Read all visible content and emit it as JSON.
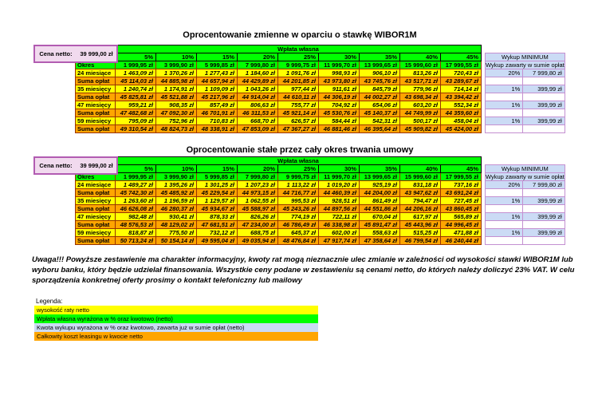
{
  "price": {
    "label": "Cena netto:",
    "value": "39 999,00 zł"
  },
  "tables": [
    {
      "title": "Oprocentowanie zmienne w oparciu o stawkę WIBOR1M",
      "header_group": "Wpłata własna",
      "columns": [
        "5%",
        "10%",
        "15%",
        "20%",
        "25%",
        "30%",
        "35%",
        "40%",
        "45%"
      ],
      "rows": [
        {
          "label": "Okres",
          "type": "okres",
          "values": [
            "1 999,95 zł",
            "3 999,90 zł",
            "5 999,85 zł",
            "7 999,80 zł",
            "9 999,75 zł",
            "11 999,70 zł",
            "13 999,65 zł",
            "15 999,60 zł",
            "17 999,55 zł"
          ]
        },
        {
          "label": "24 miesiące",
          "type": "rata",
          "values": [
            "1 463,09 zł",
            "1 370,26 zł",
            "1 277,43 zł",
            "1 184,60 zł",
            "1 091,76 zł",
            "998,93 zł",
            "906,10 zł",
            "813,26 zł",
            "720,43 zł"
          ]
        },
        {
          "label": "Suma opłat",
          "type": "suma",
          "values": [
            "45 114,03 zł",
            "44 885,98 zł",
            "44 657,94 zł",
            "44 429,89 zł",
            "44 201,85 zł",
            "43 973,80 zł",
            "43 745,76 zł",
            "43 517,71 zł",
            "43 289,67 zł"
          ]
        },
        {
          "label": "35 miesięcy",
          "type": "rata",
          "values": [
            "1 240,74 zł",
            "1 174,91 zł",
            "1 109,09 zł",
            "1 043,26 zł",
            "977,44 zł",
            "911,61 zł",
            "845,79 zł",
            "779,96 zł",
            "714,14 zł"
          ]
        },
        {
          "label": "Suma opłat",
          "type": "suma",
          "values": [
            "45 825,81 zł",
            "45 521,88 zł",
            "45 217,96 zł",
            "44 914,04 zł",
            "44 610,11 zł",
            "44 306,19 zł",
            "44 002,27 zł",
            "43 698,34 zł",
            "43 394,42 zł"
          ]
        },
        {
          "label": "47 miesięcy",
          "type": "rata",
          "values": [
            "959,21 zł",
            "908,35 zł",
            "857,49 zł",
            "806,63 zł",
            "755,77 zł",
            "704,92 zł",
            "654,06 zł",
            "603,20 zł",
            "552,34 zł"
          ]
        },
        {
          "label": "Suma opłat",
          "type": "suma",
          "values": [
            "47 482,68 zł",
            "47 092,30 zł",
            "46 701,91 zł",
            "46 311,53 zł",
            "45 921,14 zł",
            "45 530,76 zł",
            "45 140,37 zł",
            "44 749,99 zł",
            "44 359,60 zł"
          ]
        },
        {
          "label": "59 miesięcy",
          "type": "rata",
          "values": [
            "795,09 zł",
            "752,96 zł",
            "710,83 zł",
            "668,70 zł",
            "626,57 zł",
            "584,44 zł",
            "542,31 zł",
            "500,17 zł",
            "458,04 zł"
          ]
        },
        {
          "label": "Suma opłat",
          "type": "suma",
          "values": [
            "49 310,54 zł",
            "48 824,73 zł",
            "48 338,91 zł",
            "47 853,09 zł",
            "47 367,27 zł",
            "46 881,46 zł",
            "46 395,64 zł",
            "45 909,82 zł",
            "45 424,00 zł"
          ]
        }
      ],
      "wykup": {
        "title": "Wykup MINIMUM",
        "subtitle": "Wykup zawarty w sumie opłat",
        "rows": [
          [
            "20%",
            "7 999,80 zł"
          ],
          [
            "",
            ""
          ],
          [
            "1%",
            "399,99 zł"
          ],
          [
            "",
            ""
          ],
          [
            "1%",
            "399,99 zł"
          ],
          [
            "",
            ""
          ],
          [
            "1%",
            "399,99 zł"
          ],
          [
            "",
            ""
          ]
        ]
      }
    },
    {
      "title": "Oprocentowanie stałe przez cały okres trwania umowy",
      "header_group": "Wpłata własna",
      "columns": [
        "5%",
        "10%",
        "15%",
        "20%",
        "25%",
        "30%",
        "35%",
        "40%",
        "45%"
      ],
      "rows": [
        {
          "label": "Okres",
          "type": "okres",
          "values": [
            "1 999,95 zł",
            "3 999,90 zł",
            "5 999,85 zł",
            "7 999,80 zł",
            "9 999,75 zł",
            "11 999,70 zł",
            "13 999,65 zł",
            "15 999,60 zł",
            "17 999,55 zł"
          ]
        },
        {
          "label": "24 miesiące",
          "type": "rata",
          "values": [
            "1 489,27 zł",
            "1 395,26 zł",
            "1 301,25 zł",
            "1 207,23 zł",
            "1 113,22 zł",
            "1 019,20 zł",
            "925,19 zł",
            "831,18 zł",
            "737,16 zł"
          ]
        },
        {
          "label": "Suma opłat",
          "type": "suma",
          "values": [
            "45 742,30 zł",
            "45 485,92 zł",
            "45 229,54 zł",
            "44 973,15 zł",
            "44 716,77 zł",
            "44 460,39 zł",
            "44 204,00 zł",
            "43 947,62 zł",
            "43 691,24 zł"
          ]
        },
        {
          "label": "35 miesięcy",
          "type": "rata",
          "values": [
            "1 263,60 zł",
            "1 196,59 zł",
            "1 129,57 zł",
            "1 062,55 zł",
            "995,53 zł",
            "928,51 zł",
            "861,49 zł",
            "794,47 zł",
            "727,45 zł"
          ]
        },
        {
          "label": "Suma opłat",
          "type": "suma",
          "values": [
            "46 626,08 zł",
            "46 280,37 zł",
            "45 934,67 zł",
            "45 588,97 zł",
            "45 243,26 zł",
            "44 897,56 zł",
            "44 551,86 zł",
            "44 206,16 zł",
            "43 860,45 zł"
          ]
        },
        {
          "label": "47 miesięcy",
          "type": "rata",
          "values": [
            "982,48 zł",
            "930,41 zł",
            "878,33 zł",
            "826,26 zł",
            "774,19 zł",
            "722,11 zł",
            "670,04 zł",
            "617,97 zł",
            "565,89 zł"
          ]
        },
        {
          "label": "Suma opłat",
          "type": "suma",
          "values": [
            "48 576,53 zł",
            "48 129,02 zł",
            "47 681,51 zł",
            "47 234,00 zł",
            "46 786,49 zł",
            "46 338,98 zł",
            "45 891,47 zł",
            "45 443,96 zł",
            "44 996,45 zł"
          ]
        },
        {
          "label": "59 miesięcy",
          "type": "rata",
          "values": [
            "818,87 zł",
            "775,50 zł",
            "732,12 zł",
            "688,75 zł",
            "645,37 zł",
            "602,00 zł",
            "558,63 zł",
            "515,25 zł",
            "471,88 zł"
          ]
        },
        {
          "label": "Suma opłat",
          "type": "suma",
          "values": [
            "50 713,24 zł",
            "50 154,14 zł",
            "49 595,04 zł",
            "49 035,94 zł",
            "48 476,84 zł",
            "47 917,74 zł",
            "47 358,64 zł",
            "46 799,54 zł",
            "46 240,44 zł"
          ]
        }
      ],
      "wykup": {
        "title": "Wykup MINIMUM",
        "subtitle": "Wykup zawarty w sumie opłat",
        "rows": [
          [
            "20%",
            "7 999,80 zł"
          ],
          [
            "",
            ""
          ],
          [
            "1%",
            "399,99 zł"
          ],
          [
            "",
            ""
          ],
          [
            "1%",
            "399,99 zł"
          ],
          [
            "",
            ""
          ],
          [
            "1%",
            "399,99 zł"
          ],
          [
            "",
            ""
          ]
        ]
      }
    }
  ],
  "warning": "Uwaga!!! Powyższe zestawienie ma charakter informacyjny, kwoty rat mogą nieznacznie ulec zmianie w zależności od wysokości stawki WIBOR1M lub wyboru banku, który będzie udzielał finansowania. Wszystkie ceny podane w zestawieniu są cenami netto, do których należy doliczyć 23% VAT. W celu sporządzenia konkretnej oferty prosimy o kontakt telefoniczny lub mailowy",
  "legend": {
    "title": "Legenda:",
    "items": [
      {
        "label": "wysokość raty netto",
        "color": "#FFFF00"
      },
      {
        "label": "Wpłata własna wyrażona w % oraz kwotowo (netto)",
        "color": "#00FF00"
      },
      {
        "label": "Kwota wykupu wyrażona w % oraz kwotowo, zawarta już w sumie opłat (netto)",
        "color": "#CBDBF5"
      },
      {
        "label": "Całkowity koszt leasingu w kwocie netto",
        "color": "#FFA500"
      }
    ]
  },
  "colors": {
    "rate_row": "#FFFF00",
    "down_payment": "#00FF00",
    "buyout": "#CBDBF5",
    "total_cost": "#FFA500",
    "price_box": "#F1DAEE",
    "grid_border": "#993300"
  }
}
